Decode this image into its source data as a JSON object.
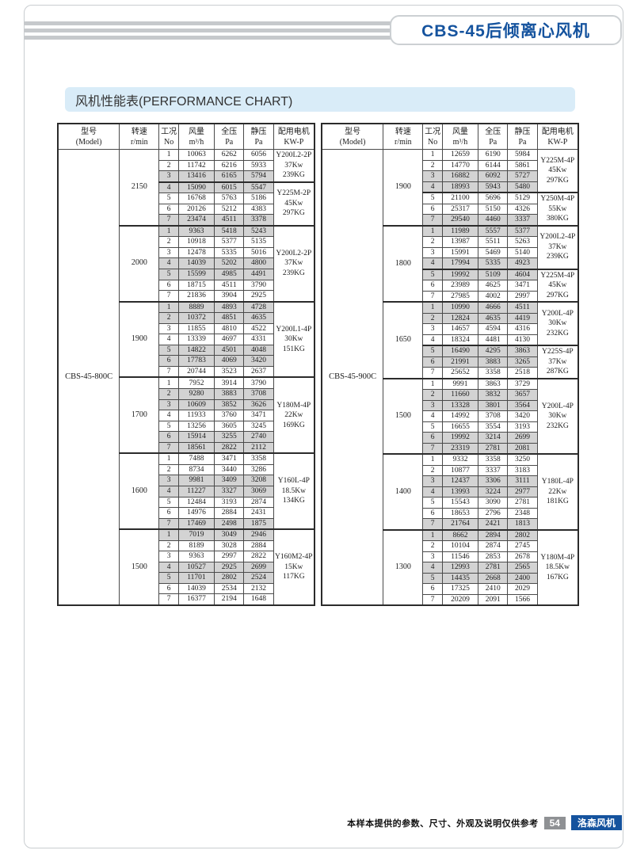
{
  "header": {
    "title": "CBS-45后倾离心风机"
  },
  "section": {
    "title": "风机性能表(PERFORMANCE CHART)"
  },
  "colors": {
    "accent_blue": "#15539e",
    "section_bg": "#d9ecf8",
    "row_shade": "#d3d3d3",
    "page_num_bg": "#8f9194",
    "frame_gray": "#c9cdd0"
  },
  "table": {
    "columns": [
      {
        "key": "model",
        "l1": "型号",
        "l2": "(Model)"
      },
      {
        "key": "speed",
        "l1": "转速",
        "l2": "r/min"
      },
      {
        "key": "case-no",
        "l1": "工况",
        "l2": "No"
      },
      {
        "key": "air-flow",
        "l1": "风量",
        "l2": "m³/h"
      },
      {
        "key": "total-pressure",
        "l1": "全压",
        "l2": "Pa"
      },
      {
        "key": "static-pressure",
        "l1": "静压",
        "l2": "Pa"
      },
      {
        "key": "motor",
        "l1": "配用电机",
        "l2": "KW-P"
      }
    ],
    "tables": [
      {
        "model": "CBS-45-800C",
        "groups": [
          {
            "speed": "2150",
            "rows": [
              [
                1,
                10063,
                6262,
                6056
              ],
              [
                2,
                11742,
                6216,
                5933
              ],
              [
                3,
                13416,
                6165,
                5794
              ],
              [
                4,
                15090,
                6015,
                5547
              ],
              [
                5,
                16768,
                5763,
                5186
              ],
              [
                6,
                20126,
                5212,
                4383
              ],
              [
                7,
                23474,
                4511,
                3378
              ]
            ],
            "motors": [
              {
                "span": 3,
                "model": "Y200L2-2P",
                "power": "37Kw",
                "weight": "239KG"
              },
              {
                "span": 4,
                "model": "Y225M-2P",
                "power": "45Kw",
                "weight": "297KG"
              }
            ]
          },
          {
            "speed": "2000",
            "rows": [
              [
                1,
                9363,
                5418,
                5243
              ],
              [
                2,
                10918,
                5377,
                5135
              ],
              [
                3,
                12478,
                5335,
                5016
              ],
              [
                4,
                14039,
                5202,
                4800
              ],
              [
                5,
                15599,
                4985,
                4491
              ],
              [
                6,
                18715,
                4511,
                3790
              ],
              [
                7,
                21836,
                3904,
                2925
              ]
            ],
            "motors": [
              {
                "span": 7,
                "model": "Y200L2-2P",
                "power": "37Kw",
                "weight": "239KG"
              }
            ]
          },
          {
            "speed": "1900",
            "rows": [
              [
                1,
                8889,
                4893,
                4728
              ],
              [
                2,
                10372,
                4851,
                4635
              ],
              [
                3,
                11855,
                4810,
                4522
              ],
              [
                4,
                13339,
                4697,
                4331
              ],
              [
                5,
                14822,
                4501,
                4048
              ],
              [
                6,
                17783,
                4069,
                3420
              ],
              [
                7,
                20744,
                3523,
                2637
              ]
            ],
            "motors": [
              {
                "span": 7,
                "model": "Y200L1-4P",
                "power": "30Kw",
                "weight": "151KG"
              }
            ]
          },
          {
            "speed": "1700",
            "rows": [
              [
                1,
                7952,
                3914,
                3790
              ],
              [
                2,
                9280,
                3883,
                3708
              ],
              [
                3,
                10609,
                3852,
                3626
              ],
              [
                4,
                11933,
                3760,
                3471
              ],
              [
                5,
                13256,
                3605,
                3245
              ],
              [
                6,
                15914,
                3255,
                2740
              ],
              [
                7,
                18561,
                2822,
                2112
              ]
            ],
            "motors": [
              {
                "span": 7,
                "model": "Y180M-4P",
                "power": "22Kw",
                "weight": "169KG"
              }
            ]
          },
          {
            "speed": "1600",
            "rows": [
              [
                1,
                7488,
                3471,
                3358
              ],
              [
                2,
                8734,
                3440,
                3286
              ],
              [
                3,
                9981,
                3409,
                3208
              ],
              [
                4,
                11227,
                3327,
                3069
              ],
              [
                5,
                12484,
                3193,
                2874
              ],
              [
                6,
                14976,
                2884,
                2431
              ],
              [
                7,
                17469,
                2498,
                1875
              ]
            ],
            "motors": [
              {
                "span": 7,
                "model": "Y160L-4P",
                "power": "18.5Kw",
                "weight": "134KG"
              }
            ]
          },
          {
            "speed": "1500",
            "rows": [
              [
                1,
                7019,
                3049,
                2946
              ],
              [
                2,
                8189,
                3028,
                2884
              ],
              [
                3,
                9363,
                2997,
                2822
              ],
              [
                4,
                10527,
                2925,
                2699
              ],
              [
                5,
                11701,
                2802,
                2524
              ],
              [
                6,
                14039,
                2534,
                2132
              ],
              [
                7,
                16377,
                2194,
                1648
              ]
            ],
            "motors": [
              {
                "span": 7,
                "model": "Y160M2-4P",
                "power": "15Kw",
                "weight": "117KG"
              }
            ]
          }
        ]
      },
      {
        "model": "CBS-45-900C",
        "groups": [
          {
            "speed": "1900",
            "rows": [
              [
                1,
                12659,
                6190,
                5984
              ],
              [
                2,
                14770,
                6144,
                5861
              ],
              [
                3,
                16882,
                6092,
                5727
              ],
              [
                4,
                18993,
                5943,
                5480
              ],
              [
                5,
                21100,
                5696,
                5129
              ],
              [
                6,
                25317,
                5150,
                4326
              ],
              [
                7,
                29540,
                4460,
                3337
              ]
            ],
            "motors": [
              {
                "span": 4,
                "model": "Y225M-4P",
                "power": "45Kw",
                "weight": "297KG"
              },
              {
                "span": 3,
                "model": "Y250M-4P",
                "power": "55Kw",
                "weight": "380KG"
              }
            ]
          },
          {
            "speed": "1800",
            "rows": [
              [
                1,
                11989,
                5557,
                5377
              ],
              [
                2,
                13987,
                5511,
                5263
              ],
              [
                3,
                15991,
                5469,
                5140
              ],
              [
                4,
                17994,
                5335,
                4923
              ],
              [
                5,
                19992,
                5109,
                4604
              ],
              [
                6,
                23989,
                4625,
                3471
              ],
              [
                7,
                27985,
                4002,
                2997
              ]
            ],
            "motors": [
              {
                "span": 4,
                "model": "Y200L2-4P",
                "power": "37Kw",
                "weight": "239KG"
              },
              {
                "span": 3,
                "model": "Y225M-4P",
                "power": "45Kw",
                "weight": "297KG"
              }
            ]
          },
          {
            "speed": "1650",
            "rows": [
              [
                1,
                10990,
                4666,
                4511
              ],
              [
                2,
                12824,
                4635,
                4419
              ],
              [
                3,
                14657,
                4594,
                4316
              ],
              [
                4,
                18324,
                4481,
                4130
              ],
              [
                5,
                16490,
                4295,
                3863
              ],
              [
                6,
                21991,
                3883,
                3265
              ],
              [
                7,
                25652,
                3358,
                2518
              ]
            ],
            "motors": [
              {
                "span": 4,
                "model": "Y200L-4P",
                "power": "30Kw",
                "weight": "232KG"
              },
              {
                "span": 3,
                "model": "Y225S-4P",
                "power": "37Kw",
                "weight": "287KG"
              }
            ]
          },
          {
            "speed": "1500",
            "rows": [
              [
                1,
                9991,
                3863,
                3729
              ],
              [
                2,
                11660,
                3832,
                3657
              ],
              [
                3,
                13328,
                3801,
                3564
              ],
              [
                4,
                14992,
                3708,
                3420
              ],
              [
                5,
                16655,
                3554,
                3193
              ],
              [
                6,
                19992,
                3214,
                2699
              ],
              [
                7,
                23319,
                2781,
                2081
              ]
            ],
            "motors": [
              {
                "span": 7,
                "model": "Y200L-4P",
                "power": "30Kw",
                "weight": "232KG"
              }
            ]
          },
          {
            "speed": "1400",
            "rows": [
              [
                1,
                9332,
                3358,
                3250
              ],
              [
                2,
                10877,
                3337,
                3183
              ],
              [
                3,
                12437,
                3306,
                3111
              ],
              [
                4,
                13993,
                3224,
                2977
              ],
              [
                5,
                15543,
                3090,
                2781
              ],
              [
                6,
                18653,
                2796,
                2348
              ],
              [
                7,
                21764,
                2421,
                1813
              ]
            ],
            "motors": [
              {
                "span": 7,
                "model": "Y180L-4P",
                "power": "22Kw",
                "weight": "181KG"
              }
            ]
          },
          {
            "speed": "1300",
            "rows": [
              [
                1,
                8662,
                2894,
                2802
              ],
              [
                2,
                10104,
                2874,
                2745
              ],
              [
                3,
                11546,
                2853,
                2678
              ],
              [
                4,
                12993,
                2781,
                2565
              ],
              [
                5,
                14435,
                2668,
                2400
              ],
              [
                6,
                17325,
                2410,
                2029
              ],
              [
                7,
                20209,
                2091,
                1566
              ]
            ],
            "motors": [
              {
                "span": 7,
                "model": "Y180M-4P",
                "power": "18.5Kw",
                "weight": "167KG"
              }
            ]
          }
        ]
      }
    ]
  },
  "footer": {
    "note": "本样本提供的参数、尺寸、外观及说明仅供参考",
    "page_number": "54",
    "brand": "洛森风机"
  }
}
